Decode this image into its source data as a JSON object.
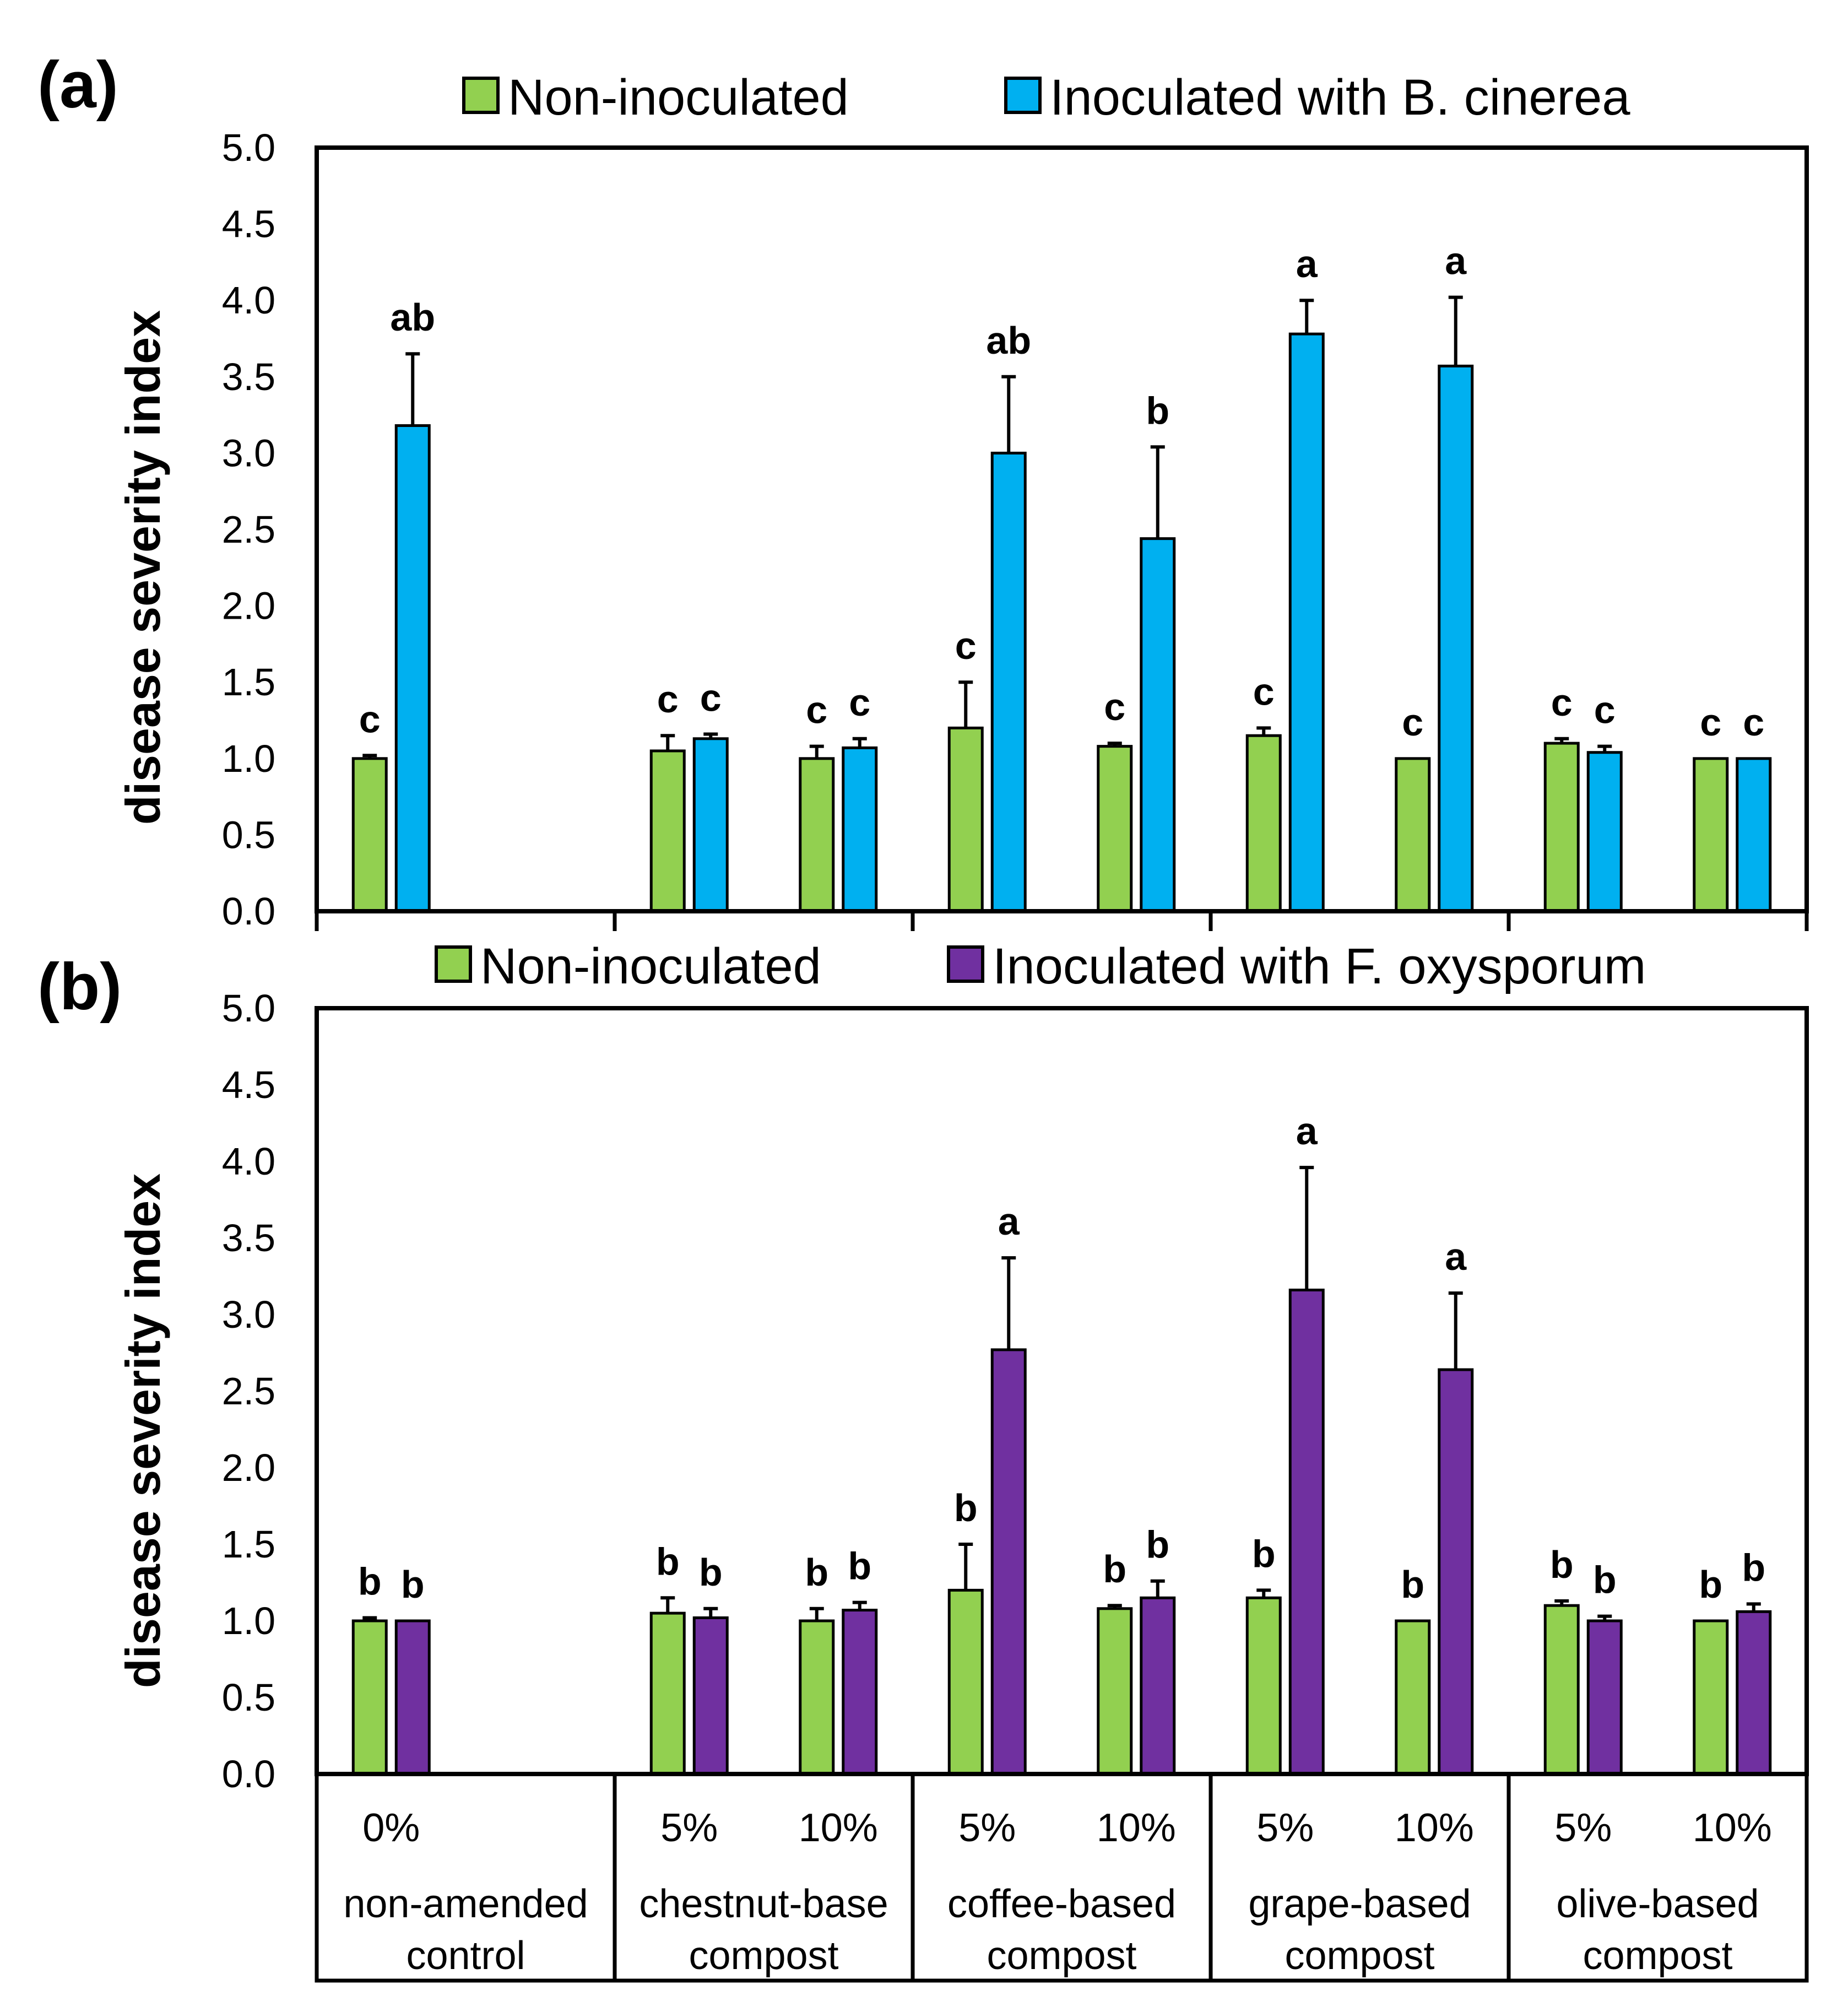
{
  "colors": {
    "non_inoculated": "#92d050",
    "botrytis": "#00b0f0",
    "fusarium": "#7030a0",
    "axis": "#000000"
  },
  "x_axis": {
    "doses": [
      "0%",
      "5%",
      "10%",
      "5%",
      "10%",
      "5%",
      "10%",
      "5%",
      "10%"
    ],
    "groups": [
      [
        "non-amended",
        "control"
      ],
      [
        "chestnut-base",
        "compost"
      ],
      [
        "coffee-based",
        "compost"
      ],
      [
        "grape-based",
        "compost"
      ],
      [
        "olive-based",
        "compost"
      ]
    ]
  },
  "chart_data": [
    {
      "type": "bar",
      "panel": "(a)",
      "ylabel": "disease severity index",
      "ylim": [
        0,
        5
      ],
      "yticks": [
        "0.0",
        "0.5",
        "1.0",
        "1.5",
        "2.0",
        "2.5",
        "3.0",
        "3.5",
        "4.0",
        "4.5",
        "5.0"
      ],
      "legend": [
        "Non-inoculated",
        "Inoculated with B. cinerea"
      ],
      "series": [
        {
          "name": "Non-inoculated",
          "values": [
            1.0,
            1.05,
            1.0,
            1.2,
            1.08,
            1.15,
            1.0,
            1.1,
            1.0
          ],
          "errors": [
            0.02,
            0.1,
            0.08,
            0.3,
            0.02,
            0.05,
            0.0,
            0.03,
            0.0
          ],
          "letters": [
            "c",
            "c",
            "c",
            "c",
            "c",
            "c",
            "c",
            "c",
            "c"
          ]
        },
        {
          "name": "Inoculated with B. cinerea",
          "values": [
            3.18,
            1.13,
            1.07,
            3.0,
            2.44,
            3.78,
            3.57,
            1.04,
            1.0
          ],
          "errors": [
            0.47,
            0.03,
            0.06,
            0.5,
            0.6,
            0.22,
            0.45,
            0.04,
            0.0
          ],
          "letters": [
            "ab",
            "c",
            "c",
            "ab",
            "b",
            "a",
            "a",
            "c",
            "c"
          ]
        }
      ]
    },
    {
      "type": "bar",
      "panel": "(b)",
      "ylabel": "disease severity index",
      "ylim": [
        0,
        5
      ],
      "yticks": [
        "0.0",
        "0.5",
        "1.0",
        "1.5",
        "2.0",
        "2.5",
        "3.0",
        "3.5",
        "4.0",
        "4.5",
        "5.0"
      ],
      "legend": [
        "Non-inoculated",
        "Inoculated with F. oxysporum"
      ],
      "series": [
        {
          "name": "Non-inoculated",
          "values": [
            1.0,
            1.05,
            1.0,
            1.2,
            1.08,
            1.15,
            1.0,
            1.1,
            1.0
          ],
          "errors": [
            0.02,
            0.1,
            0.08,
            0.3,
            0.02,
            0.05,
            0.0,
            0.03,
            0.0
          ],
          "letters": [
            "b",
            "b",
            "b",
            "b",
            "b",
            "b",
            "b",
            "b",
            "b"
          ]
        },
        {
          "name": "Inoculated with F. oxysporum",
          "values": [
            1.0,
            1.02,
            1.07,
            2.77,
            1.15,
            3.16,
            2.64,
            1.0,
            1.06
          ],
          "errors": [
            0.0,
            0.06,
            0.05,
            0.6,
            0.11,
            0.8,
            0.5,
            0.03,
            0.05
          ],
          "letters": [
            "b",
            "b",
            "b",
            "a",
            "b",
            "a",
            "a",
            "b",
            "b"
          ]
        }
      ]
    }
  ]
}
